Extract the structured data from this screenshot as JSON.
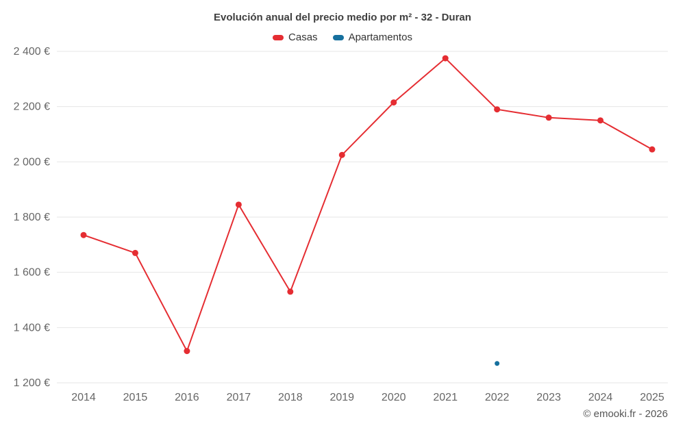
{
  "chart": {
    "title": "Evolución anual del precio medio por m² - 32 - Duran",
    "footer": "© emooki.fr - 2026",
    "colors": {
      "casas": "#e52d32",
      "apartamentos": "#16709e",
      "grid": "#e6e6e6",
      "tick_text": "#666666"
    }
  },
  "chart_data": {
    "type": "line",
    "title": "Evolución anual del precio medio por m² - 32 - Duran",
    "x": [
      2014,
      2015,
      2016,
      2017,
      2018,
      2019,
      2020,
      2021,
      2022,
      2023,
      2024,
      2025
    ],
    "series": [
      {
        "name": "Casas",
        "color": "#e52d32",
        "marker_radius": 4.5,
        "values": [
          1735,
          1670,
          1315,
          1845,
          1530,
          2025,
          2215,
          2375,
          2190,
          2160,
          2150,
          2045
        ]
      },
      {
        "name": "Apartamentos",
        "color": "#16709e",
        "marker_radius": 3.5,
        "values": [
          null,
          null,
          null,
          null,
          null,
          null,
          null,
          null,
          1270,
          null,
          null,
          null
        ]
      }
    ],
    "ylabel": "",
    "xlabel": "",
    "ylim": [
      1200,
      2400
    ],
    "ytick_step": 200,
    "ytick_suffix": " €",
    "grid": true,
    "legend_position": "top",
    "legend": [
      "Casas",
      "Apartamentos"
    ]
  }
}
